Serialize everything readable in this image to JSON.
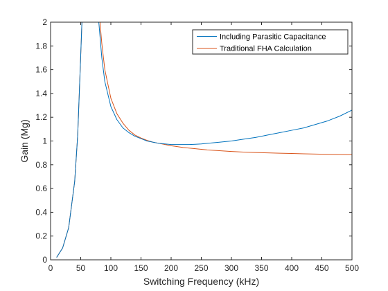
{
  "chart_data": {
    "type": "line",
    "title": "",
    "xlabel": "Switching Frequency (kHz)",
    "ylabel": "Gain (Mg)",
    "xlim": [
      0,
      500
    ],
    "ylim": [
      0,
      2
    ],
    "x_ticks": [
      0,
      50,
      100,
      150,
      200,
      250,
      300,
      350,
      400,
      450,
      500
    ],
    "y_ticks": [
      0,
      0.2,
      0.4,
      0.6,
      0.8,
      1,
      1.2,
      1.4,
      1.6,
      1.8,
      2
    ],
    "x_tick_labels": [
      "0",
      "50",
      "100",
      "150",
      "200",
      "250",
      "300",
      "350",
      "400",
      "450",
      "500"
    ],
    "y_tick_labels": [
      "0",
      "0.2",
      "0.4",
      "0.6",
      "0.8",
      "1",
      "1.2",
      "1.4",
      "1.6",
      "1.8",
      "2"
    ],
    "grid": false,
    "legend_position": "top-right",
    "series": [
      {
        "name": "Including Parasitic Capacitance",
        "color": "#0072BD",
        "x": [
          10,
          20,
          30,
          40,
          45,
          50,
          52,
          80,
          85,
          90,
          100,
          110,
          120,
          130,
          140,
          150,
          160,
          170,
          180,
          190,
          200,
          210,
          220,
          230,
          240,
          250,
          260,
          280,
          300,
          320,
          340,
          360,
          380,
          400,
          420,
          440,
          460,
          480,
          500
        ],
        "y": [
          0.02,
          0.1,
          0.27,
          0.66,
          1.05,
          1.72,
          2.0,
          2.0,
          1.7,
          1.5,
          1.29,
          1.18,
          1.11,
          1.07,
          1.04,
          1.02,
          1.0,
          0.99,
          0.98,
          0.975,
          0.97,
          0.97,
          0.97,
          0.97,
          0.972,
          0.975,
          0.98,
          0.99,
          1.0,
          1.015,
          1.03,
          1.05,
          1.07,
          1.09,
          1.11,
          1.14,
          1.17,
          1.21,
          1.26
        ]
      },
      {
        "name": "Traditional FHA Calculation",
        "color": "#D95319",
        "x": [
          10,
          20,
          30,
          40,
          45,
          50,
          52,
          82,
          85,
          90,
          100,
          110,
          120,
          130,
          140,
          150,
          160,
          170,
          180,
          190,
          200,
          220,
          240,
          260,
          280,
          300,
          320,
          340,
          360,
          380,
          400,
          420,
          440,
          460,
          480,
          500
        ],
        "y": [
          0.02,
          0.1,
          0.27,
          0.66,
          1.05,
          1.72,
          2.0,
          2.0,
          1.82,
          1.6,
          1.36,
          1.23,
          1.15,
          1.09,
          1.05,
          1.025,
          1.005,
          0.99,
          0.98,
          0.97,
          0.96,
          0.945,
          0.935,
          0.925,
          0.918,
          0.912,
          0.907,
          0.903,
          0.9,
          0.897,
          0.895,
          0.892,
          0.89,
          0.888,
          0.886,
          0.885
        ]
      }
    ]
  }
}
